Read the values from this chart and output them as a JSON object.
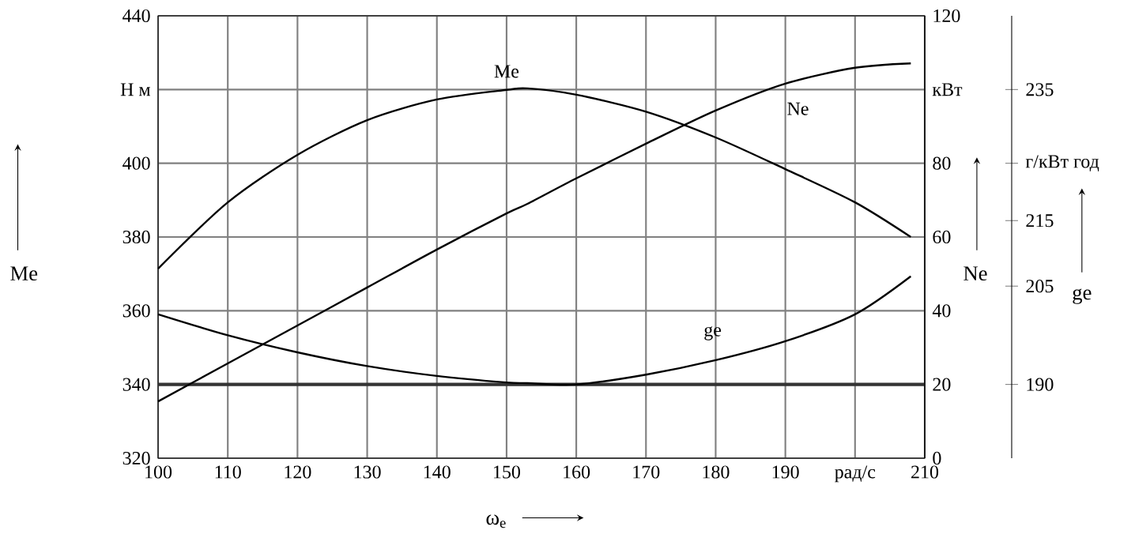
{
  "chart_data": {
    "type": "line",
    "xlabel": "ω$_{e}$",
    "ylabel": "Me",
    "y2label": "Ne",
    "y3label": "ge",
    "x": [
      100,
      110,
      120,
      130,
      140,
      150,
      153,
      160,
      170,
      180,
      190,
      200,
      208
    ],
    "series": [
      {
        "name": "Me",
        "color": "#000000",
        "values": [
          371.4,
          389.4,
          402.3,
          411.7,
          417.3,
          419.9,
          420.3,
          418.6,
          414,
          407,
          398.4,
          389.4,
          380
        ]
      },
      {
        "name": "Ne",
        "color": "#000000",
        "axis": "y2",
        "values": [
          15.4,
          25.7,
          36,
          46.3,
          56.6,
          66.4,
          69,
          75.9,
          85.3,
          94.3,
          101.6,
          105.9,
          107.1
        ]
      },
      {
        "name": "ge",
        "color": "#000000",
        "axis": "y3",
        "values": [
          200.7,
          197.5,
          194.9,
          192.8,
          191.3,
          190.3,
          190.2,
          190,
          191.5,
          193.7,
          196.6,
          200.7,
          206.5
        ]
      }
    ],
    "xlim": [
      100,
      210
    ],
    "xticks": [
      100,
      110,
      120,
      130,
      140,
      150,
      160,
      170,
      180,
      190,
      {
        "value": 200,
        "label": "рад/с"
      },
      210
    ],
    "ylim": [
      320,
      440
    ],
    "yticks": [
      320,
      340,
      360,
      380,
      400,
      {
        "value": 420,
        "label": "Н м"
      },
      440
    ],
    "y2lim": [
      0,
      120
    ],
    "y2ticks": [
      0,
      20,
      40,
      60,
      80,
      {
        "value": 100,
        "label": "кВт"
      },
      120
    ],
    "y3lim": [
      178.75,
      246.25
    ],
    "y3ticks": [
      190,
      205,
      215,
      {
        "value": 223.75,
        "label": "г/кВт год"
      },
      235
    ],
    "ref_lines": [
      {
        "axis": "y",
        "value": 340
      }
    ],
    "grid": true,
    "marker": "none",
    "line_style": "solid"
  }
}
